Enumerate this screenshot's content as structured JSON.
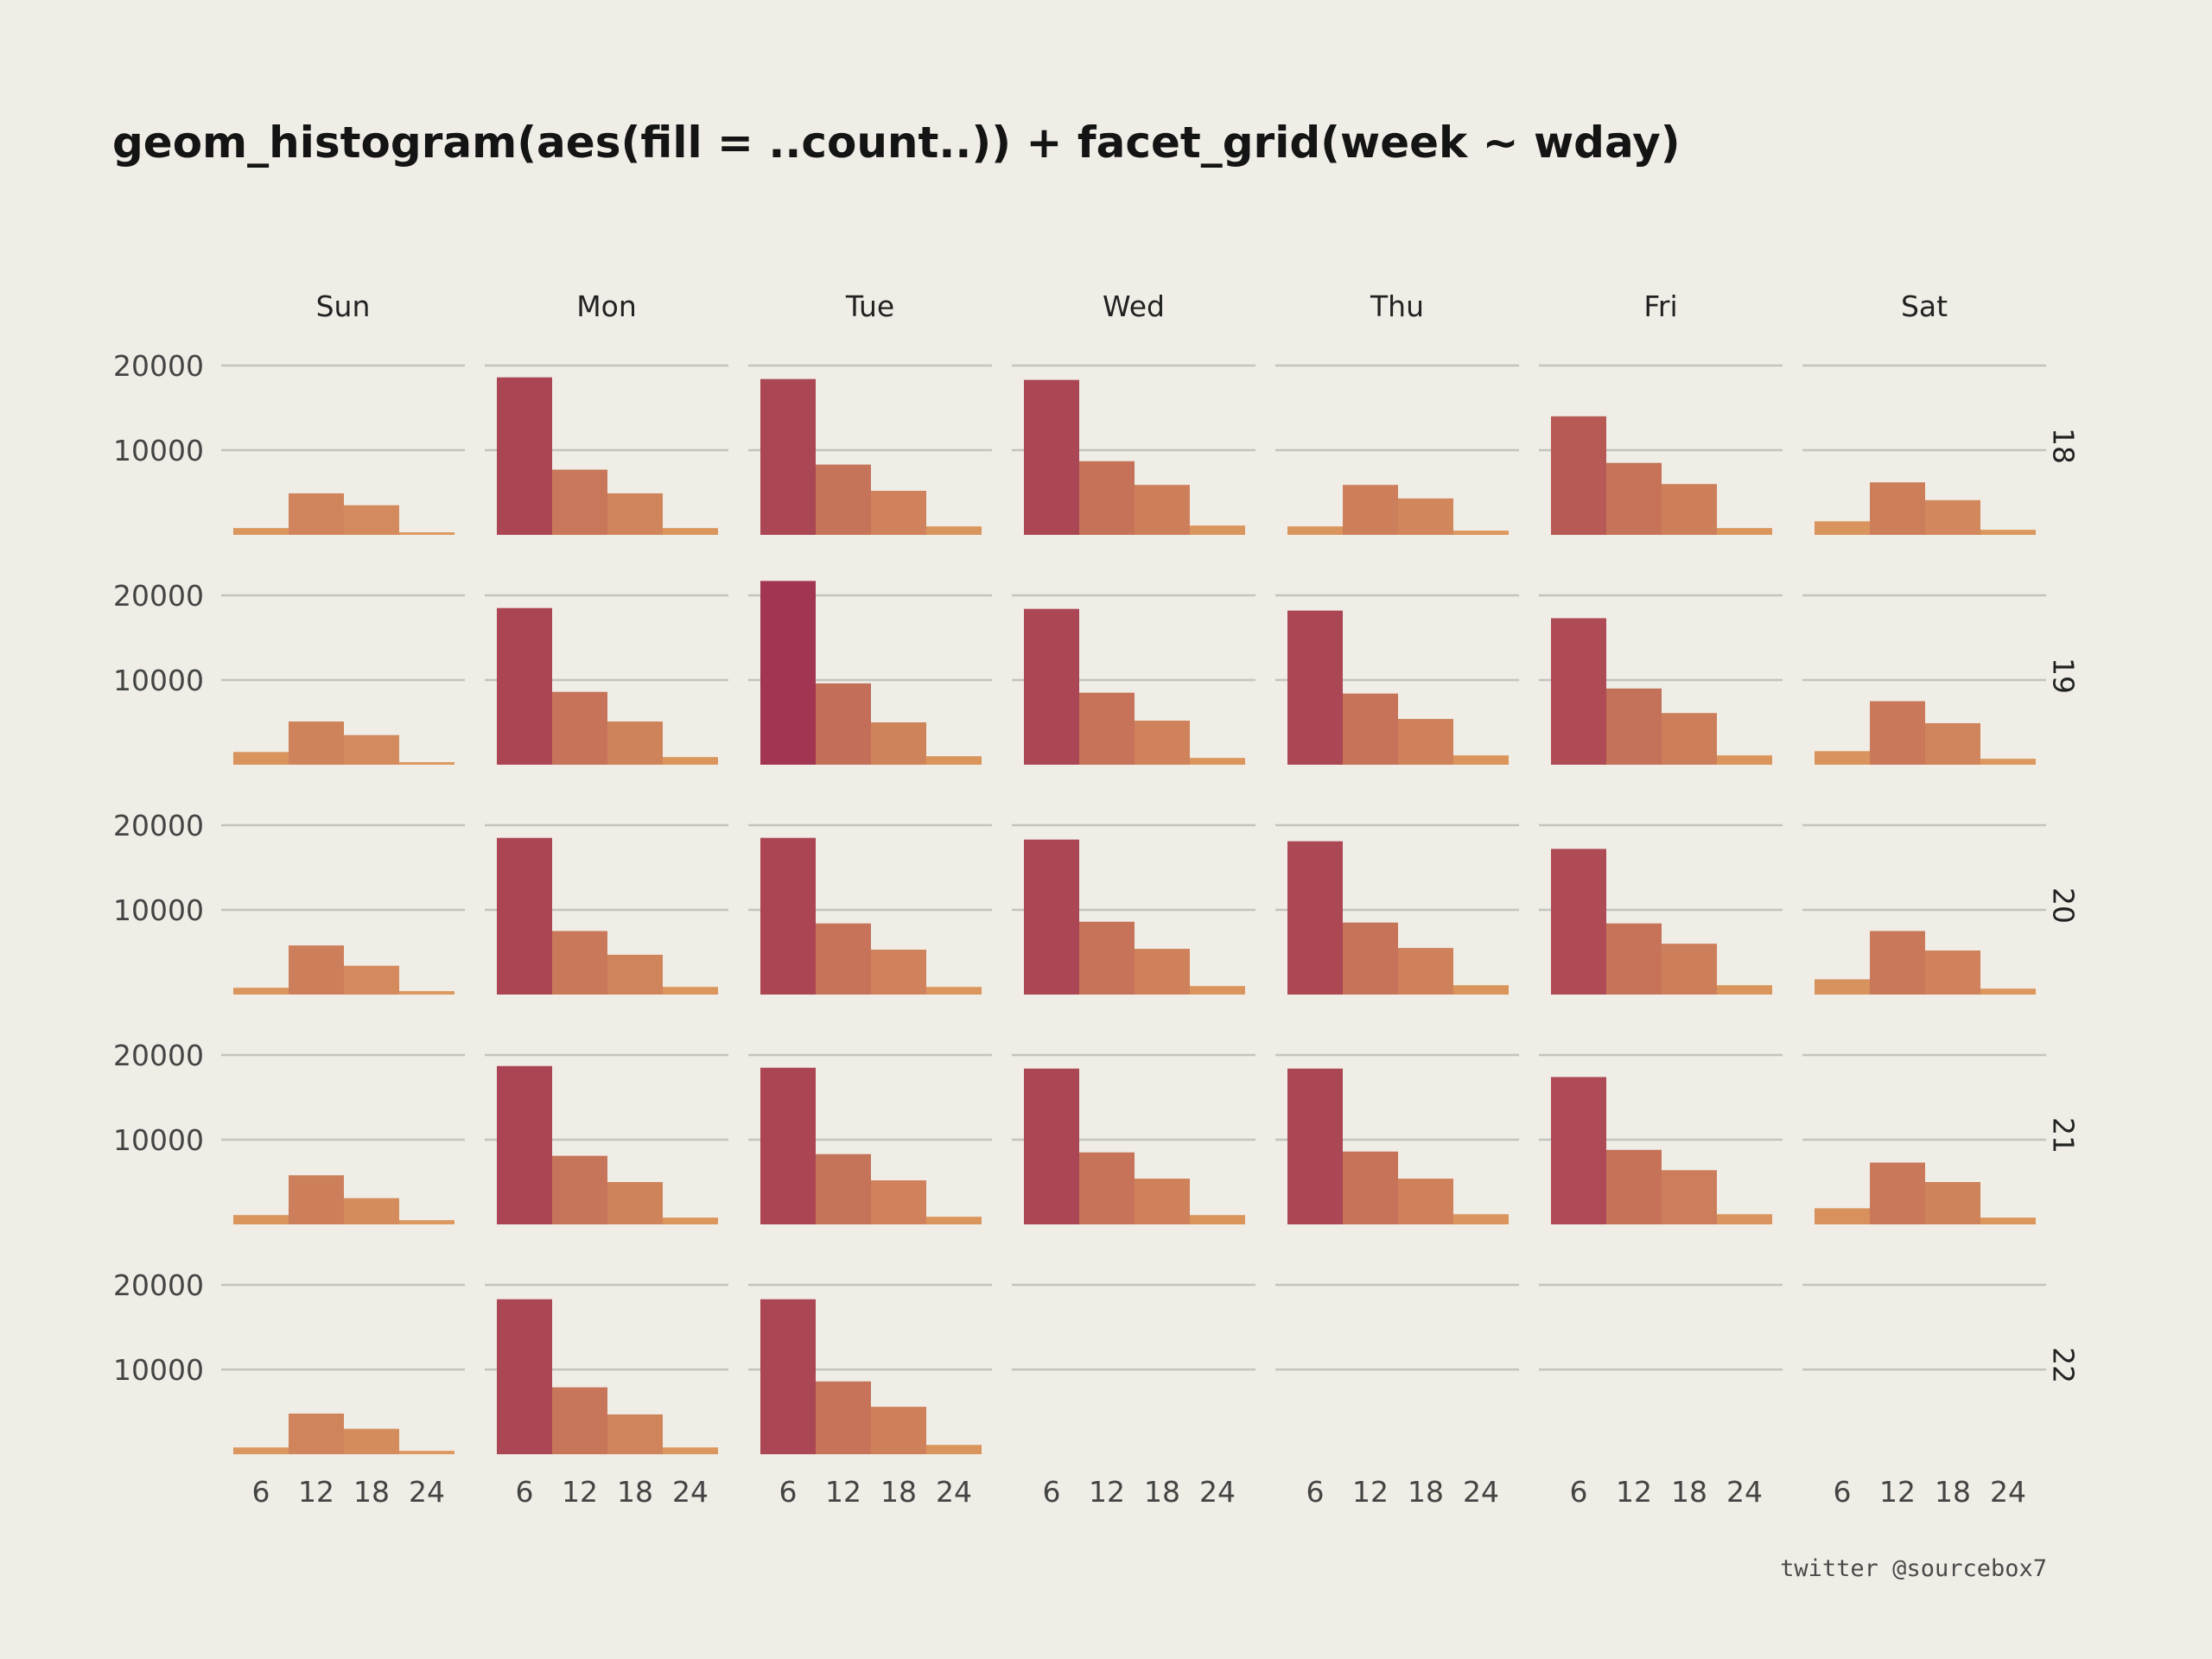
{
  "title": "geom_histogram(aes(fill = ..count..)) + facet_grid(week ~ wday)",
  "caption": "twitter @sourcebox7",
  "colors": {
    "background": "#efede6",
    "gridline": "#c4c3be",
    "fill_low": "#dd9a5e",
    "fill_high": "#a13552"
  },
  "chart_data": {
    "type": "bar",
    "geom": "histogram",
    "fill_mapping": "count",
    "facet_cols": [
      "Sun",
      "Mon",
      "Tue",
      "Wed",
      "Thu",
      "Fri",
      "Sat"
    ],
    "facet_rows": [
      "18",
      "19",
      "20",
      "21",
      "22"
    ],
    "x_bins": [
      6,
      12,
      18,
      24
    ],
    "x_ticks": [
      "6",
      "12",
      "18",
      "24"
    ],
    "y_ticks": [
      "20000",
      "10000"
    ],
    "ylim": [
      0,
      20000
    ],
    "grid": true,
    "counts": [
      [
        [
          800,
          4900,
          3500,
          300
        ],
        [
          18600,
          7700,
          4900,
          800
        ],
        [
          18400,
          8300,
          5200,
          1000
        ],
        [
          18300,
          8700,
          5900,
          1100
        ],
        [
          1000,
          5900,
          4300,
          500
        ],
        [
          14000,
          8500,
          6000,
          800
        ],
        [
          1600,
          6200,
          4100,
          600
        ]
      ],
      [
        [
          1500,
          5100,
          3500,
          300
        ],
        [
          18500,
          8600,
          5100,
          900
        ],
        [
          21700,
          9600,
          5000,
          1000
        ],
        [
          18400,
          8500,
          5200,
          800
        ],
        [
          18200,
          8400,
          5400,
          1100
        ],
        [
          17300,
          9000,
          6100,
          1100
        ],
        [
          1600,
          7500,
          4900,
          700
        ]
      ],
      [
        [
          800,
          5800,
          3400,
          400
        ],
        [
          18500,
          7500,
          4700,
          900
        ],
        [
          18500,
          8400,
          5300,
          900
        ],
        [
          18300,
          8600,
          5400,
          1000
        ],
        [
          18100,
          8500,
          5500,
          1100
        ],
        [
          17200,
          8400,
          6000,
          1100
        ],
        [
          1800,
          7500,
          5200,
          700
        ]
      ],
      [
        [
          1100,
          5800,
          3100,
          500
        ],
        [
          18700,
          8100,
          5000,
          800
        ],
        [
          18500,
          8300,
          5200,
          900
        ],
        [
          18400,
          8500,
          5400,
          1100
        ],
        [
          18400,
          8600,
          5400,
          1200
        ],
        [
          17400,
          8800,
          6400,
          1200
        ],
        [
          1900,
          7300,
          5000,
          800
        ]
      ],
      [
        [
          800,
          4800,
          3000,
          400
        ],
        [
          18300,
          7900,
          4700,
          800
        ],
        [
          18300,
          8600,
          5600,
          1100
        ],
        null,
        null,
        null,
        null
      ]
    ]
  }
}
